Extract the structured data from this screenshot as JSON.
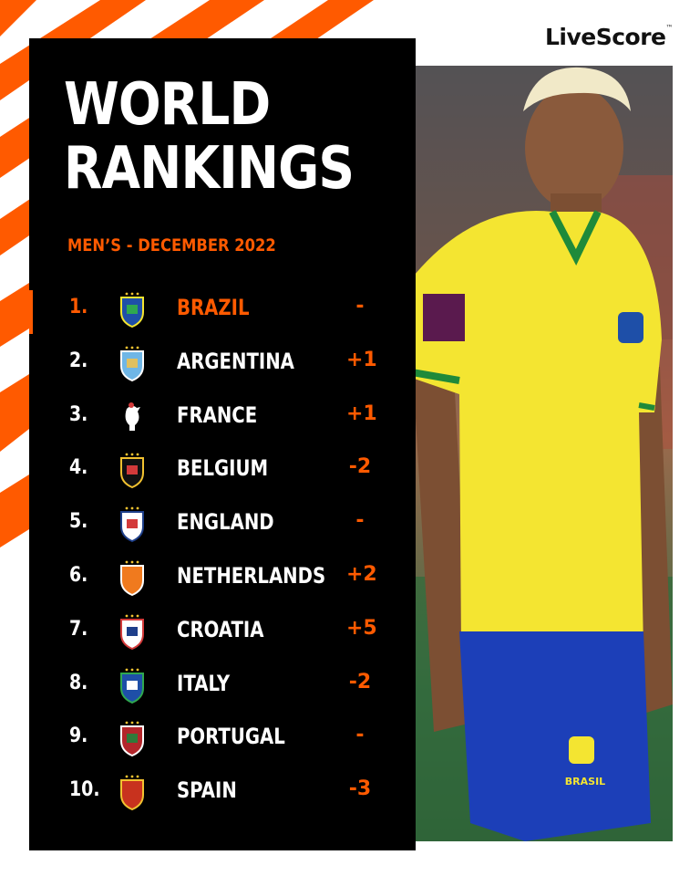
{
  "brand": {
    "name": "LiveScore",
    "tm": "™"
  },
  "title": {
    "line1": "WORLD",
    "line2": "RANKINGS"
  },
  "subtitle": "MEN’S - DECEMBER 2022",
  "colors": {
    "accent": "#ff5a00",
    "card": "#000000",
    "text": "#ffffff"
  },
  "photo": {
    "description": "player-photo",
    "shirt_text": "BRASIL"
  },
  "rankings": [
    {
      "rank": "1.",
      "team": "BRAZIL",
      "change": "-",
      "crest_icon": "brazil-crest-icon",
      "highlight": true
    },
    {
      "rank": "2.",
      "team": "ARGENTINA",
      "change": "+1",
      "crest_icon": "argentina-crest-icon"
    },
    {
      "rank": "3.",
      "team": "FRANCE",
      "change": "+1",
      "crest_icon": "france-crest-icon"
    },
    {
      "rank": "4.",
      "team": "BELGIUM",
      "change": "-2",
      "crest_icon": "belgium-crest-icon"
    },
    {
      "rank": "5.",
      "team": "ENGLAND",
      "change": "-",
      "crest_icon": "england-crest-icon"
    },
    {
      "rank": "6.",
      "team": "NETHERLANDS",
      "change": "+2",
      "crest_icon": "netherlands-crest-icon"
    },
    {
      "rank": "7.",
      "team": "CROATIA",
      "change": "+5",
      "crest_icon": "croatia-crest-icon"
    },
    {
      "rank": "8.",
      "team": "ITALY",
      "change": "-2",
      "crest_icon": "italy-crest-icon"
    },
    {
      "rank": "9.",
      "team": "PORTUGAL",
      "change": "-",
      "crest_icon": "portugal-crest-icon"
    },
    {
      "rank": "10.",
      "team": "SPAIN",
      "change": "-3",
      "crest_icon": "spain-crest-icon"
    }
  ]
}
